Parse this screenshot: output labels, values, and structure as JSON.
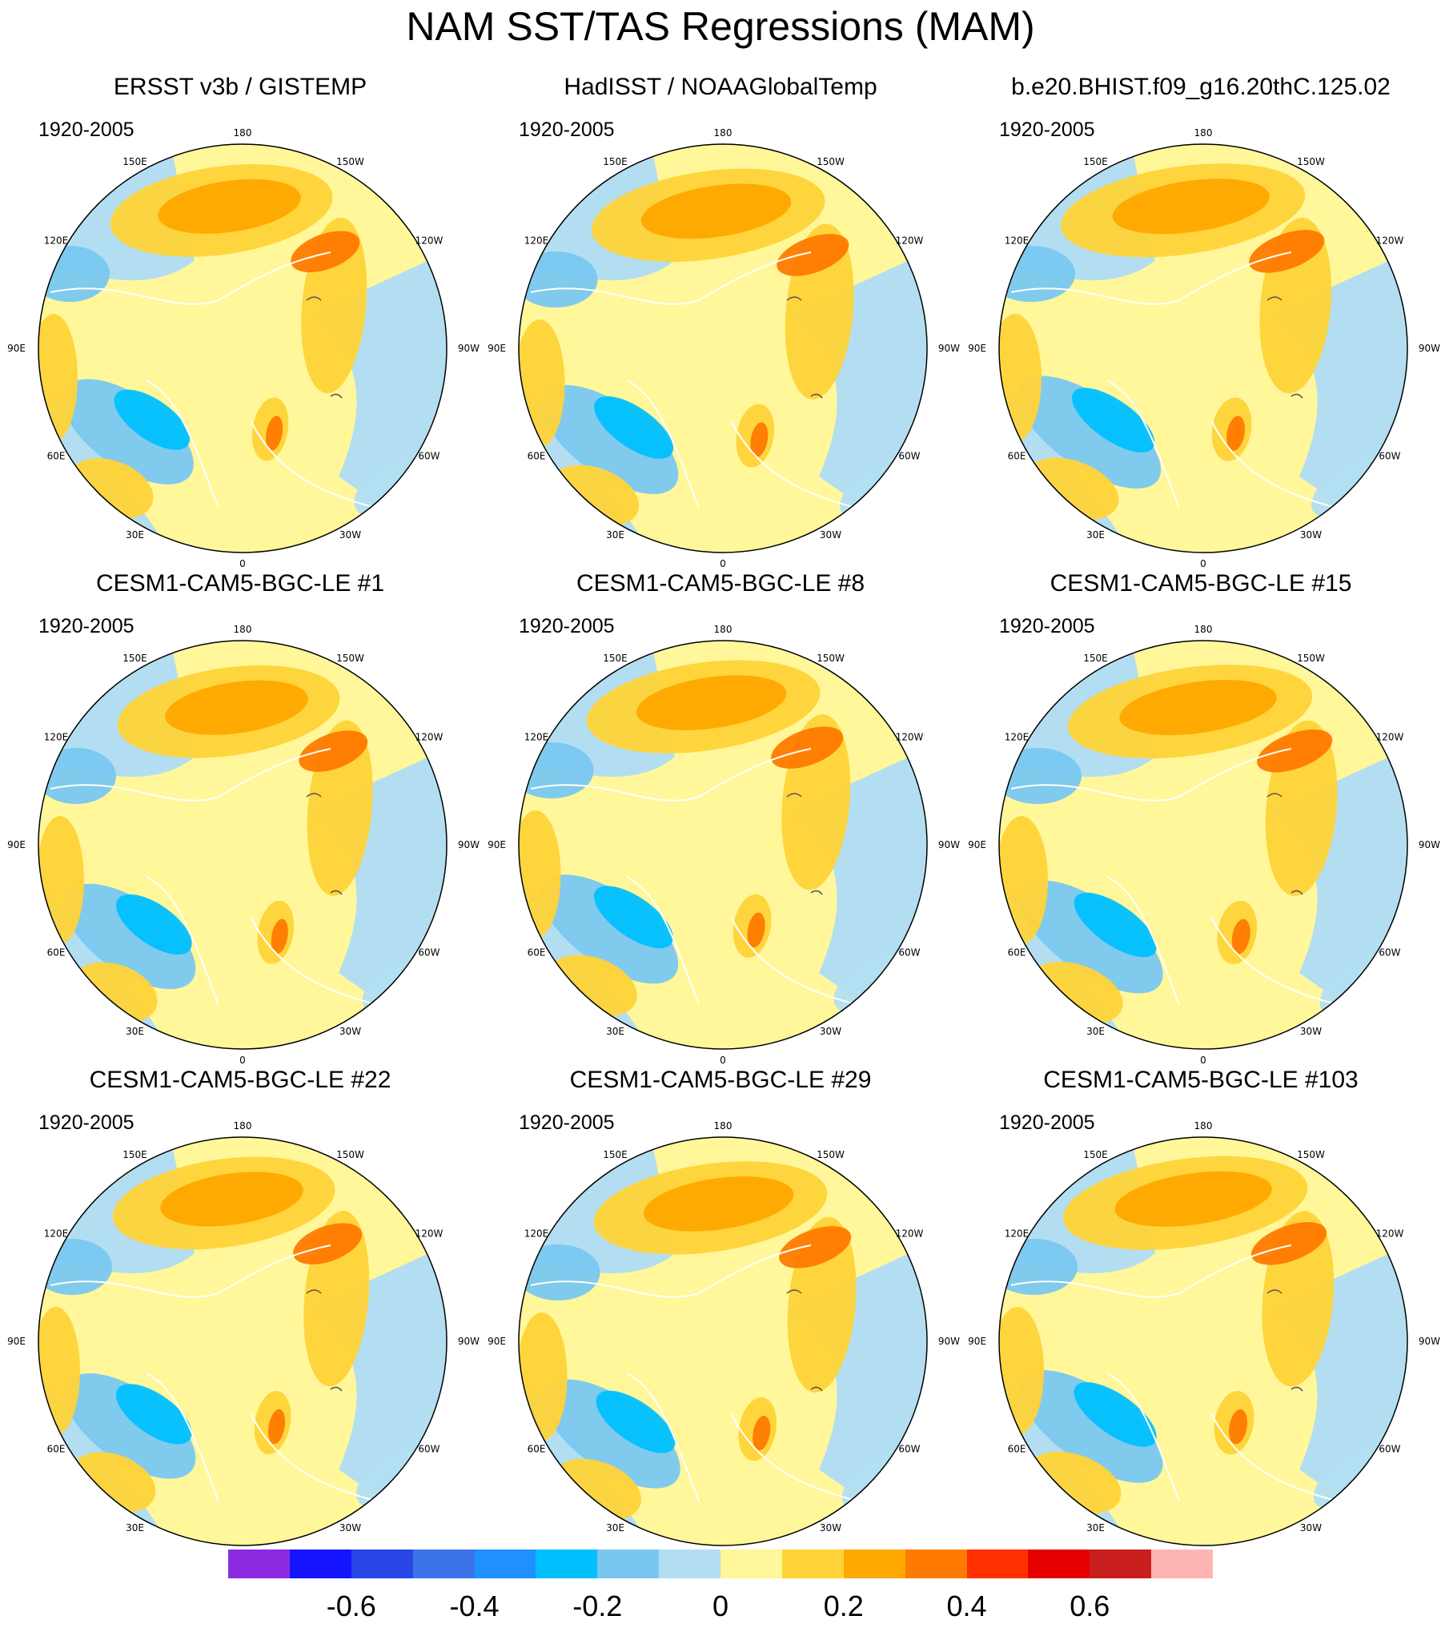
{
  "title": "NAM SST/TAS Regressions (MAM)",
  "period": "1920-2005",
  "lon_labels": [
    "180",
    "150E",
    "120E",
    "90E",
    "60E",
    "30E",
    "0",
    "30W",
    "60W",
    "90W",
    "120W",
    "150W"
  ],
  "panels": [
    {
      "title": "ERSST v3b / GISTEMP",
      "period": "1920-2005"
    },
    {
      "title": "HadISST / NOAAGlobalTemp",
      "period": "1920-2005"
    },
    {
      "title": "b.e20.BHIST.f09_g16.20thC.125.02",
      "period": "1920-2005"
    },
    {
      "title": "CESM1-CAM5-BGC-LE #1",
      "period": "1920-2005"
    },
    {
      "title": "CESM1-CAM5-BGC-LE #8",
      "period": "1920-2005"
    },
    {
      "title": "CESM1-CAM5-BGC-LE #15",
      "period": "1920-2005"
    },
    {
      "title": "CESM1-CAM5-BGC-LE #22",
      "period": "1920-2005"
    },
    {
      "title": "CESM1-CAM5-BGC-LE #29",
      "period": "1920-2005"
    },
    {
      "title": "CESM1-CAM5-BGC-LE #103",
      "period": "1920-2005"
    }
  ],
  "colorbar": {
    "colors": [
      "#8a2be2",
      "#1414ff",
      "#2845e6",
      "#3a74e8",
      "#1e90ff",
      "#00bfff",
      "#79c7f1",
      "#b3def2",
      "#fff79a",
      "#ffd338",
      "#ffa800",
      "#ff7a00",
      "#ff3000",
      "#e60000",
      "#c81e1e",
      "#ffb4b4"
    ],
    "labels": [
      "-0.6",
      "-0.4",
      "-0.2",
      "0",
      "0.2",
      "0.4",
      "0.6"
    ],
    "label_values": [
      -0.6,
      -0.4,
      -0.2,
      0,
      0.2,
      0.4,
      0.6
    ],
    "min": -0.8,
    "max": 0.8
  },
  "colors": {
    "land_outline": "#ffffff",
    "lake_outline": "#555555",
    "neutral_warm": "#fff79a",
    "neutral_cool": "#b3def2"
  }
}
